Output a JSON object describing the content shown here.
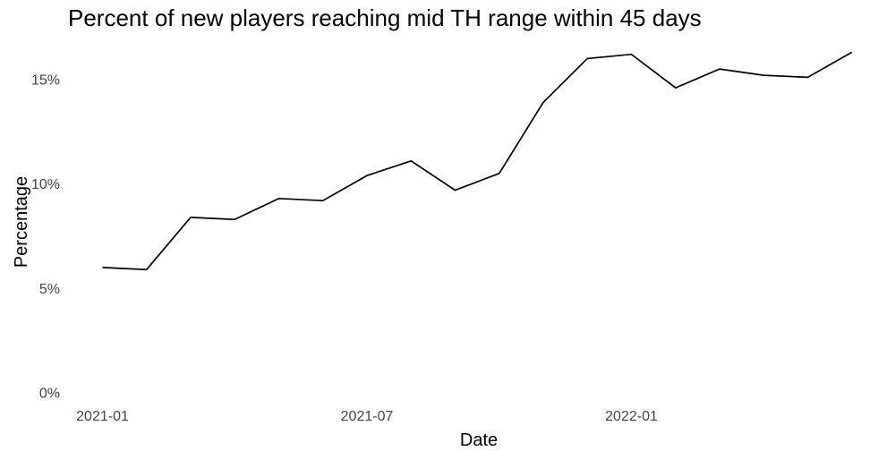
{
  "chart_data": {
    "type": "line",
    "title": "Percent of new players reaching mid TH range within 45 days",
    "xlabel": "Date",
    "ylabel": "Percentage",
    "x": [
      "2021-01",
      "2021-02",
      "2021-03",
      "2021-04",
      "2021-05",
      "2021-06",
      "2021-07",
      "2021-08",
      "2021-09",
      "2021-10",
      "2021-11",
      "2021-12",
      "2022-01",
      "2022-02",
      "2022-03",
      "2022-04",
      "2022-05",
      "2022-06"
    ],
    "series": [
      {
        "name": "percent_reaching_mid_th",
        "values": [
          6.0,
          5.9,
          8.4,
          8.3,
          9.3,
          9.2,
          10.4,
          11.1,
          9.7,
          10.5,
          13.9,
          16.0,
          16.2,
          14.6,
          15.5,
          15.2,
          15.1,
          16.3
        ]
      }
    ],
    "x_tick_labels": [
      "2021-01",
      "2021-07",
      "2022-01"
    ],
    "y_ticks": [
      0,
      5,
      10,
      15
    ],
    "y_tick_labels": [
      "0%",
      "5%",
      "10%",
      "15%"
    ],
    "ylim": [
      0,
      17.5
    ],
    "grid": "off",
    "legend": "none",
    "line_color": "#000000",
    "background_color": "#ffffff",
    "tick_label_color": "#444444",
    "text_color": "#000000"
  }
}
